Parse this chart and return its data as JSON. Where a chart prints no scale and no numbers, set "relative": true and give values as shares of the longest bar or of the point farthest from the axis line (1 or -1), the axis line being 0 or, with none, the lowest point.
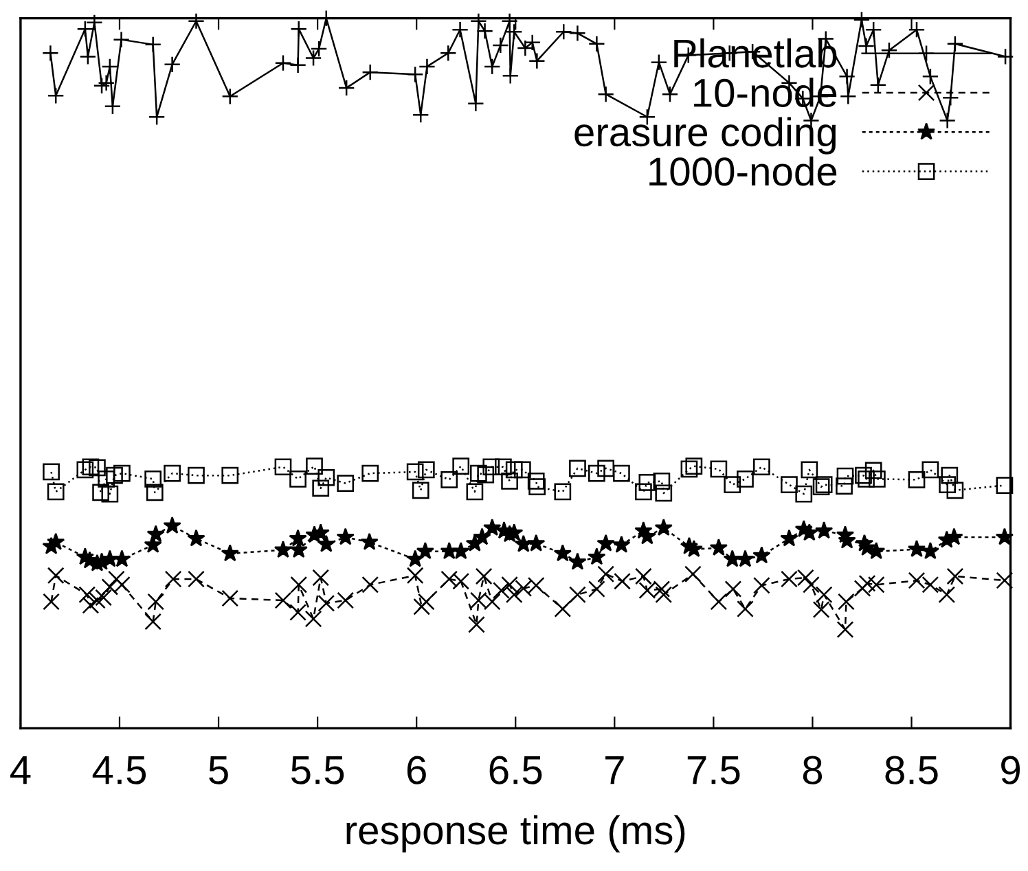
{
  "chart_data": {
    "type": "line",
    "relative": true,
    "xlabel": "response time (ms)",
    "xlim": [
      4,
      9
    ],
    "xticks": [
      4,
      4.5,
      5,
      5.5,
      6,
      6.5,
      7,
      7.5,
      8,
      8.5,
      9
    ],
    "tick_labels": "x",
    "grid": false,
    "legend": "top right",
    "series": [
      {
        "name": "Planetlab",
        "color": "#000000",
        "marker": "plus",
        "line_style": "solid",
        "x": [
          4.151,
          4.178,
          4.326,
          4.34,
          4.373,
          4.41,
          4.433,
          4.451,
          4.465,
          4.509,
          4.669,
          4.688,
          4.766,
          4.887,
          5.058,
          5.326,
          5.401,
          5.405,
          5.479,
          5.507,
          5.544,
          5.646,
          5.766,
          5.993,
          6.021,
          6.053,
          6.16,
          6.22,
          6.299,
          6.313,
          6.345,
          6.382,
          6.424,
          6.47,
          6.474,
          6.493,
          6.549,
          6.585,
          6.608,
          6.743,
          6.813,
          6.91,
          6.956,
          7.165,
          7.224,
          7.28,
          7.373,
          7.581,
          7.697,
          7.882,
          7.951,
          7.993,
          8.04,
          8.067,
          8.174,
          8.18,
          8.248,
          8.271,
          8.308,
          8.331,
          8.387,
          8.526,
          8.595,
          8.681,
          8.697,
          8.72,
          8.974
        ],
        "values": [
          0.951,
          0.891,
          0.985,
          0.946,
          0.994,
          0.905,
          0.909,
          0.932,
          0.876,
          0.97,
          0.963,
          0.861,
          0.935,
          0.996,
          0.89,
          0.937,
          0.934,
          0.985,
          0.944,
          0.957,
          1,
          0.902,
          0.924,
          0.921,
          0.864,
          0.932,
          0.951,
          0.984,
          0.88,
          0.996,
          0.982,
          0.932,
          0.962,
          0.996,
          0.919,
          0.981,
          0.958,
          0.966,
          0.94,
          0.981,
          0.979,
          0.964,
          0.893,
          0.861,
          0.938,
          0.893,
          0.948,
          0.951,
          0.953,
          0.909,
          0.887,
          0.856,
          0.89,
          0.971,
          0.918,
          0.89,
          0.998,
          0.961,
          0.984,
          0.906,
          0.955,
          0.984,
          0.918,
          0.856,
          0.888,
          0.964,
          0.946
        ]
      },
      {
        "name": "10-node",
        "color": "#000000",
        "marker": "cross",
        "line_style": "dashed",
        "x": [
          4.155,
          4.178,
          4.336,
          4.354,
          4.387,
          4.419,
          4.451,
          4.484,
          4.512,
          4.669,
          4.683,
          4.771,
          4.887,
          5.058,
          5.326,
          5.401,
          5.405,
          5.479,
          5.516,
          5.544,
          5.641,
          5.766,
          5.993,
          6.026,
          6.049,
          6.165,
          6.224,
          6.303,
          6.313,
          6.34,
          6.382,
          6.428,
          6.47,
          6.493,
          6.54,
          6.604,
          6.738,
          6.813,
          6.91,
          6.956,
          7.039,
          7.146,
          7.165,
          7.238,
          7.248,
          7.396,
          7.526,
          7.599,
          7.66,
          7.743,
          7.882,
          7.965,
          7.993,
          8.044,
          8.058,
          8.165,
          8.17,
          8.252,
          8.276,
          8.322,
          8.526,
          8.595,
          8.678,
          8.72,
          8.97
        ],
        "values": [
          0.178,
          0.215,
          0.188,
          0.173,
          0.18,
          0.184,
          0.199,
          0.21,
          0.202,
          0.15,
          0.178,
          0.21,
          0.21,
          0.183,
          0.18,
          0.163,
          0.202,
          0.154,
          0.212,
          0.176,
          0.18,
          0.202,
          0.215,
          0.171,
          0.178,
          0.21,
          0.207,
          0.146,
          0.18,
          0.214,
          0.178,
          0.194,
          0.202,
          0.188,
          0.197,
          0.201,
          0.168,
          0.188,
          0.196,
          0.217,
          0.207,
          0.214,
          0.194,
          0.196,
          0.188,
          0.217,
          0.178,
          0.196,
          0.168,
          0.201,
          0.21,
          0.212,
          0.202,
          0.167,
          0.188,
          0.139,
          0.178,
          0.197,
          0.204,
          0.202,
          0.208,
          0.202,
          0.188,
          0.214,
          0.208
        ]
      },
      {
        "name": "erasure coding",
        "color": "#000000",
        "marker": "star",
        "line_style": "dashed",
        "x": [
          4.155,
          4.178,
          4.326,
          4.349,
          4.387,
          4.41,
          4.451,
          4.512,
          4.669,
          4.683,
          4.766,
          4.887,
          5.058,
          5.326,
          5.401,
          5.405,
          5.484,
          5.516,
          5.544,
          5.641,
          5.762,
          5.993,
          6.044,
          6.165,
          6.224,
          6.294,
          6.331,
          6.382,
          6.442,
          6.47,
          6.493,
          6.54,
          6.604,
          6.738,
          6.813,
          6.91,
          6.956,
          7.035,
          7.146,
          7.165,
          7.248,
          7.377,
          7.401,
          7.526,
          7.595,
          7.66,
          7.743,
          7.882,
          7.956,
          7.984,
          8.058,
          8.165,
          8.174,
          8.262,
          8.276,
          8.322,
          8.526,
          8.595,
          8.678,
          8.715,
          8.97
        ],
        "values": [
          0.256,
          0.262,
          0.241,
          0.236,
          0.232,
          0.234,
          0.238,
          0.238,
          0.258,
          0.273,
          0.285,
          0.267,
          0.246,
          0.251,
          0.267,
          0.251,
          0.272,
          0.275,
          0.259,
          0.269,
          0.262,
          0.238,
          0.249,
          0.249,
          0.249,
          0.26,
          0.269,
          0.282,
          0.278,
          0.273,
          0.275,
          0.259,
          0.26,
          0.246,
          0.234,
          0.241,
          0.26,
          0.258,
          0.278,
          0.27,
          0.282,
          0.256,
          0.252,
          0.254,
          0.238,
          0.238,
          0.243,
          0.267,
          0.28,
          0.275,
          0.278,
          0.272,
          0.264,
          0.26,
          0.254,
          0.249,
          0.252,
          0.249,
          0.265,
          0.269,
          0.269
        ]
      },
      {
        "name": "1000-node",
        "color": "#000000",
        "marker": "square",
        "line_style": "dotted",
        "x": [
          4.155,
          4.178,
          4.326,
          4.354,
          4.387,
          4.405,
          4.433,
          4.451,
          4.474,
          4.512,
          4.669,
          4.678,
          4.766,
          4.887,
          5.058,
          5.326,
          5.401,
          5.484,
          5.516,
          5.544,
          5.641,
          5.766,
          5.993,
          6.021,
          6.049,
          6.165,
          6.224,
          6.294,
          6.313,
          6.349,
          6.377,
          6.438,
          6.47,
          6.493,
          6.535,
          6.604,
          6.609,
          6.738,
          6.813,
          6.91,
          6.956,
          7.035,
          7.146,
          7.165,
          7.238,
          7.248,
          7.377,
          7.401,
          7.526,
          7.595,
          7.66,
          7.743,
          7.882,
          7.956,
          7.984,
          8.044,
          8.058,
          8.16,
          8.165,
          8.257,
          8.271,
          8.308,
          8.326,
          8.526,
          8.595,
          8.681,
          8.692,
          8.72,
          8.97
        ],
        "values": [
          0.361,
          0.333,
          0.364,
          0.368,
          0.367,
          0.332,
          0.351,
          0.33,
          0.356,
          0.359,
          0.351,
          0.332,
          0.359,
          0.356,
          0.356,
          0.368,
          0.351,
          0.369,
          0.338,
          0.353,
          0.345,
          0.359,
          0.361,
          0.335,
          0.364,
          0.35,
          0.369,
          0.333,
          0.359,
          0.357,
          0.368,
          0.368,
          0.348,
          0.364,
          0.364,
          0.348,
          0.34,
          0.333,
          0.366,
          0.359,
          0.366,
          0.359,
          0.333,
          0.346,
          0.348,
          0.331,
          0.365,
          0.369,
          0.365,
          0.343,
          0.351,
          0.368,
          0.343,
          0.33,
          0.364,
          0.34,
          0.343,
          0.341,
          0.355,
          0.356,
          0.351,
          0.363,
          0.351,
          0.35,
          0.364,
          0.343,
          0.356,
          0.335,
          0.342
        ]
      }
    ]
  }
}
